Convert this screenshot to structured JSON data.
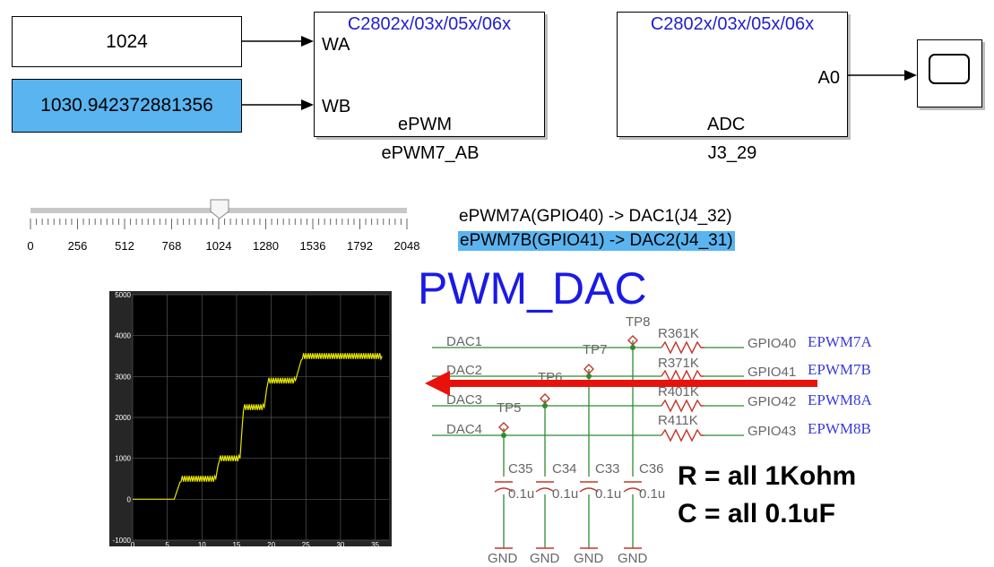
{
  "constants": {
    "wa_value": "1024",
    "wb_value": "1030.942372881356"
  },
  "epwm_block": {
    "title": "C2802x/03x/05x/06x",
    "port_a": "WA",
    "port_b": "WB",
    "inner_label": "ePWM",
    "name": "ePWM7_AB"
  },
  "adc_block": {
    "title": "C2802x/03x/05x/06x",
    "port_out": "A0",
    "inner_label": "ADC",
    "name": "J3_29"
  },
  "slider": {
    "min": 0,
    "max": 2048,
    "value": 1024,
    "tick_labels": [
      "0",
      "256",
      "512",
      "768",
      "1024",
      "1280",
      "1536",
      "1792",
      "2048"
    ]
  },
  "mapping": {
    "line1": "ePWM7A(GPIO40) -> DAC1(J4_32)",
    "line2": "ePWM7B(GPIO41) -> DAC2(J4_31)"
  },
  "heading": "PWM_DAC",
  "notes": {
    "r_note": "R = all 1Kohm",
    "c_note": "C = all 0.1uF"
  },
  "schematic": {
    "dac_labels": [
      "DAC1",
      "DAC2",
      "DAC3",
      "DAC4"
    ],
    "tp_labels": [
      "TP8",
      "TP7",
      "TP6",
      "TP5"
    ],
    "resistors": [
      "R361K",
      "R371K",
      "R401K",
      "R411K"
    ],
    "gpio_labels": [
      "GPIO40",
      "GPIO41",
      "GPIO42",
      "GPIO43"
    ],
    "epwm_labels": [
      "EPWM7A",
      "EPWM7B",
      "EPWM8A",
      "EPWM8B"
    ],
    "caps": [
      "C35",
      "C34",
      "C33",
      "C36"
    ],
    "cap_values": [
      "0.1u",
      "0.1u",
      "0.1u",
      "0.1u"
    ],
    "gnd_labels": [
      "GND",
      "GND",
      "GND",
      "GND"
    ],
    "colors": {
      "wire": "#2e8b2e",
      "component": "#c0392b",
      "arrow": "#e8120c",
      "label": "#3a3adb"
    }
  },
  "chart_data": {
    "type": "line",
    "title": "",
    "xlabel": "",
    "ylabel": "",
    "xlim": [
      0,
      37
    ],
    "ylim": [
      -1000,
      5000
    ],
    "x_ticks": [
      "0",
      "5",
      "10",
      "15",
      "20",
      "25",
      "30",
      "35"
    ],
    "y_ticks": [
      "-1000",
      "0",
      "1000",
      "2000",
      "3000",
      "4000",
      "5000"
    ],
    "grid": true,
    "series": [
      {
        "color": "#e6e600",
        "x": [
          0,
          6,
          7,
          12,
          12.5,
          15.5,
          16,
          19,
          19.5,
          23.5,
          24.5,
          36
        ],
        "y": [
          0,
          0,
          500,
          500,
          1000,
          1000,
          2250,
          2250,
          2900,
          2900,
          3500,
          3500
        ]
      }
    ]
  }
}
